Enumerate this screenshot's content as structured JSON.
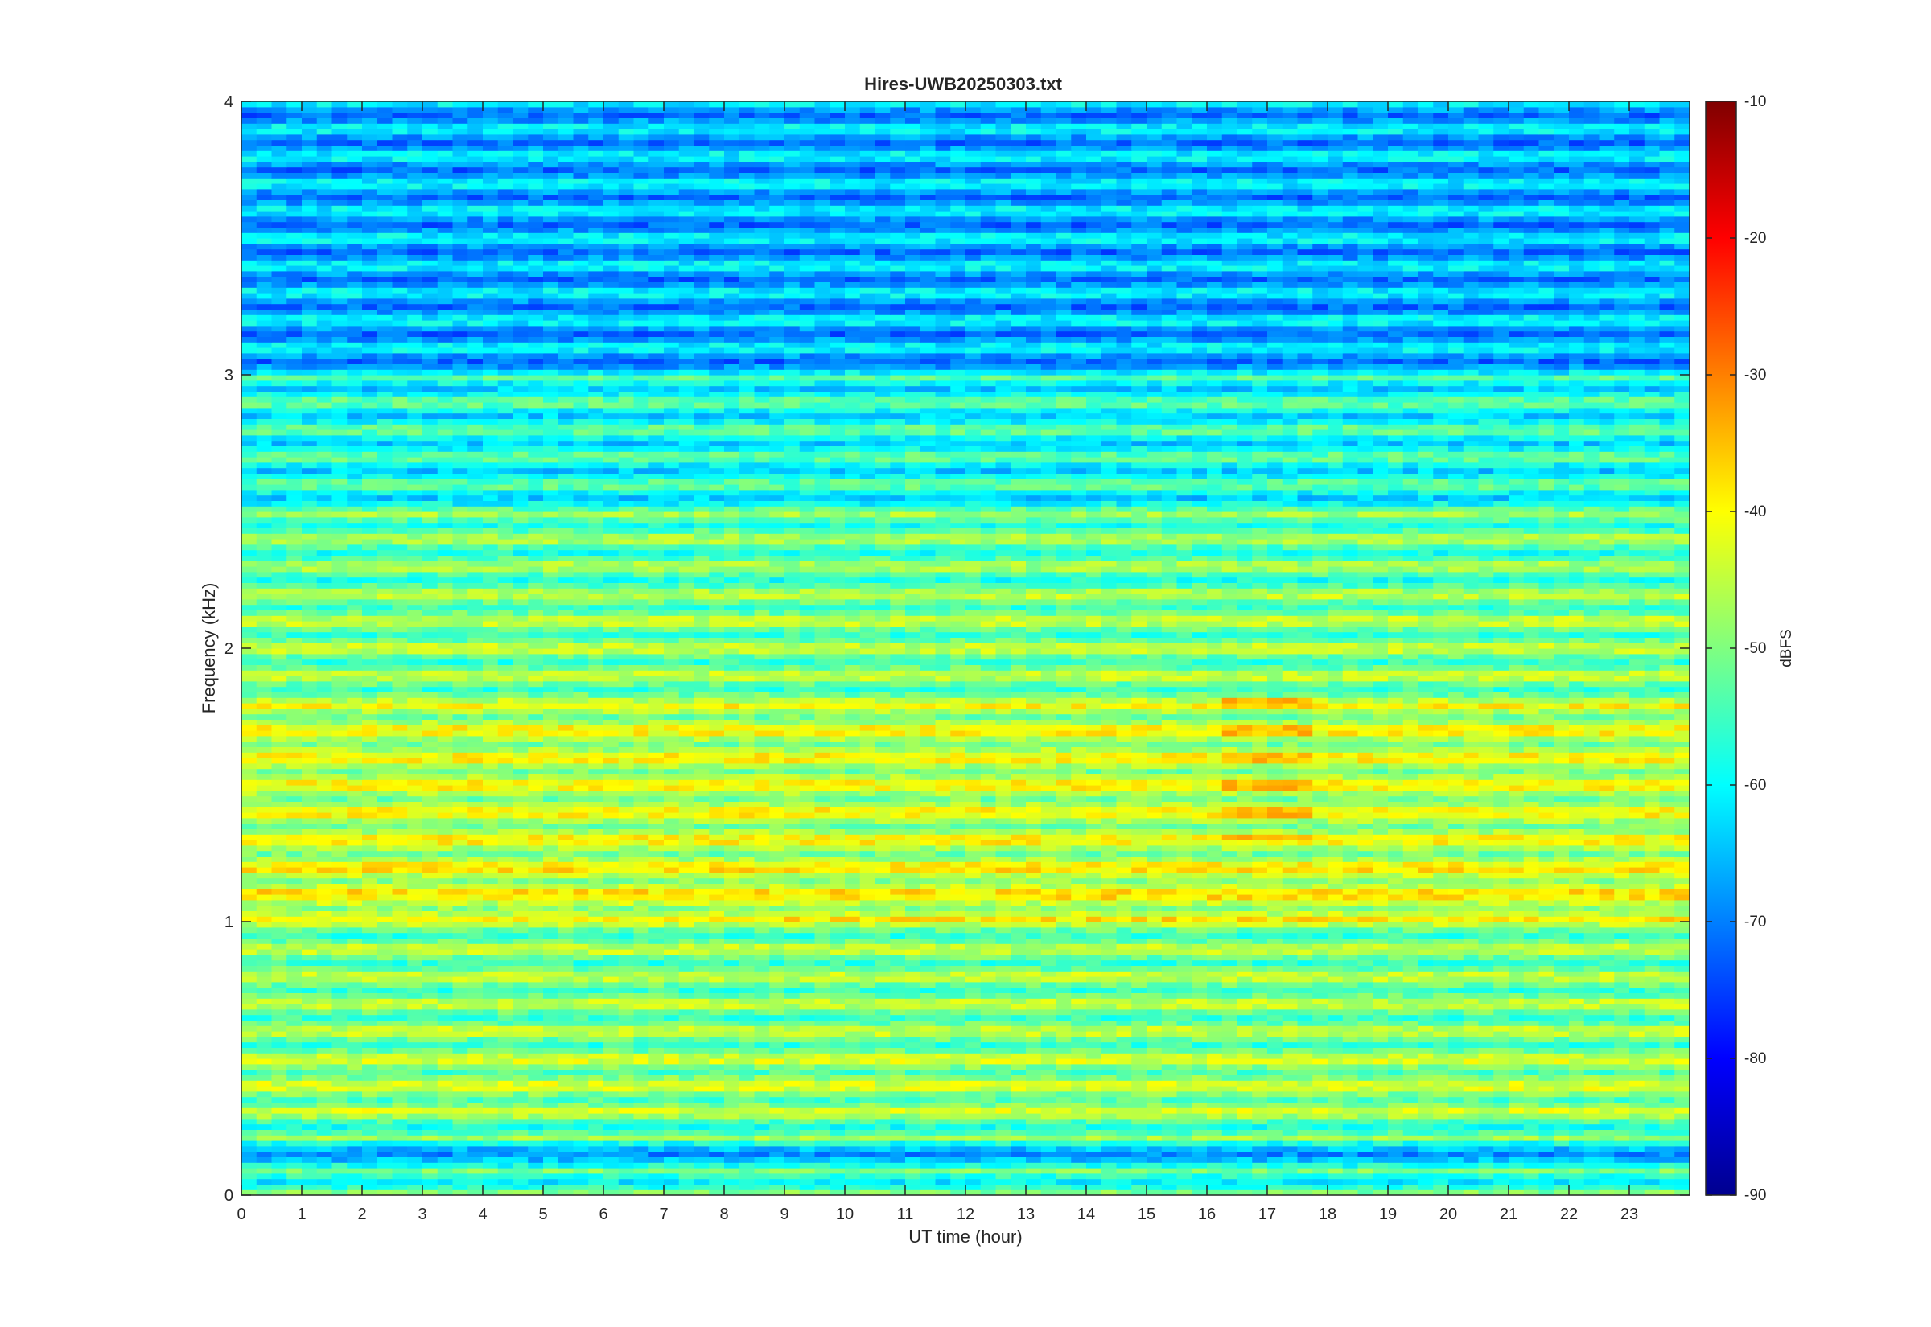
{
  "chart_data": {
    "type": "heatmap",
    "title": "Hires-UWB20250303.txt",
    "xlabel": "UT time (hour)",
    "ylabel": "Frequency (kHz)",
    "xlim": [
      0,
      24
    ],
    "ylim": [
      0,
      4
    ],
    "xticks": [
      "0",
      "1",
      "2",
      "3",
      "4",
      "5",
      "6",
      "7",
      "8",
      "9",
      "10",
      "11",
      "12",
      "13",
      "14",
      "15",
      "16",
      "17",
      "18",
      "19",
      "20",
      "21",
      "22",
      "23"
    ],
    "yticks": [
      "0",
      "1",
      "2",
      "3",
      "4"
    ],
    "colorbar": {
      "label": "dBFS",
      "range": [
        -90,
        -10
      ],
      "ticks": [
        "-10",
        "-20",
        "-30",
        "-40",
        "-50",
        "-60",
        "-70",
        "-80",
        "-90"
      ],
      "colormap": "jet"
    },
    "band_spacing_khz": 0.1,
    "band_levels_dbfs": [
      {
        "band_khz": [
          0.0,
          0.1
        ],
        "level": -55
      },
      {
        "band_khz": [
          0.1,
          0.2
        ],
        "level": -63
      },
      {
        "band_khz": [
          0.2,
          0.3
        ],
        "level": -52
      },
      {
        "band_khz": [
          0.3,
          0.5
        ],
        "level": -48
      },
      {
        "band_khz": [
          0.5,
          0.8
        ],
        "level": -50
      },
      {
        "band_khz": [
          0.8,
          1.0
        ],
        "level": -50
      },
      {
        "band_khz": [
          1.0,
          1.2
        ],
        "level": -43
      },
      {
        "band_khz": [
          1.2,
          1.8
        ],
        "level": -45
      },
      {
        "band_khz": [
          1.8,
          2.2
        ],
        "level": -50
      },
      {
        "band_khz": [
          2.2,
          2.5
        ],
        "level": -52
      },
      {
        "band_khz": [
          2.5,
          3.0
        ],
        "level": -58
      },
      {
        "band_khz": [
          3.0,
          4.0
        ],
        "level": -66
      }
    ],
    "hotspots": [
      {
        "hours": [
          16.3,
          17.8
        ],
        "khz": [
          1.3,
          1.85
        ],
        "level": -35
      },
      {
        "hours": [
          12.0,
          13.0
        ],
        "khz": [
          1.2,
          1.3
        ],
        "level": -38
      },
      {
        "hours": [
          0.5,
          9.0
        ],
        "khz": [
          1.0,
          1.1
        ],
        "level": -40
      }
    ]
  }
}
